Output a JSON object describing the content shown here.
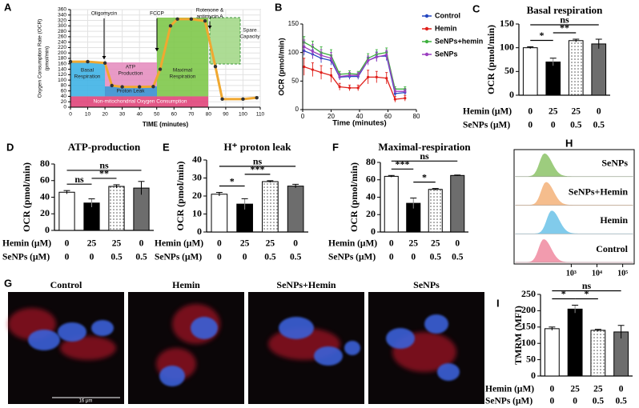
{
  "chart_data": [
    {
      "panel": "A",
      "type": "line",
      "ylabel": "Oxygen Consumption Rate (OCR)",
      "yunit": "(pmol/min)",
      "xlabel": "TIME (minutes)",
      "x": [
        0,
        10,
        20,
        24,
        30,
        40,
        48,
        52,
        58,
        62,
        70,
        78,
        84,
        88,
        100,
        108
      ],
      "values": [
        168,
        168,
        163,
        80,
        75,
        75,
        76,
        140,
        300,
        325,
        325,
        318,
        150,
        30,
        30,
        35
      ],
      "color": "#f0a830",
      "grid": true,
      "xlim": [
        0,
        110
      ],
      "xticks": [
        0,
        10,
        20,
        30,
        40,
        50,
        60,
        70,
        80,
        90,
        100,
        110
      ],
      "ylim": [
        0,
        360
      ],
      "yticks": [
        0,
        20,
        40,
        60,
        80,
        100,
        120,
        140,
        160,
        180,
        200,
        220,
        240,
        260,
        280,
        300,
        320,
        340,
        360
      ],
      "injections": [
        [
          "Oligomycin"
        ],
        [
          "FCCP"
        ],
        [
          "Rotenone &",
          "antimycin A"
        ]
      ],
      "region_labels": [
        [
          "Basal",
          "Respiration"
        ],
        [
          "ATP",
          "Production"
        ],
        [
          "Proton Leak"
        ],
        [
          "Maximal",
          "Respiration"
        ],
        [
          "Spare",
          "Capacity"
        ],
        [
          "Non-mitochondrial Oxygen Consumption"
        ]
      ]
    },
    {
      "panel": "B",
      "type": "line",
      "ylabel": "OCR (pmol/min)",
      "xlabel": "Time (minutes)",
      "x": [
        1,
        7,
        13,
        20,
        26,
        33,
        39,
        46,
        52,
        59,
        65,
        72
      ],
      "series": [
        {
          "name": "Control",
          "color": "#2346c0",
          "values": [
            103,
            97,
            90,
            86,
            57,
            58,
            58,
            86,
            93,
            94,
            28,
            30
          ],
          "errors": [
            8,
            8,
            8,
            8,
            5,
            5,
            5,
            6,
            8,
            8,
            4,
            4
          ]
        },
        {
          "name": "Hemin",
          "color": "#e0201b",
          "values": [
            75,
            70,
            65,
            60,
            40,
            38,
            38,
            57,
            57,
            55,
            18,
            20
          ],
          "errors": [
            15,
            12,
            12,
            12,
            6,
            5,
            5,
            12,
            10,
            10,
            5,
            5
          ]
        },
        {
          "name": "SeNPs+hemin",
          "color": "#3db03d",
          "values": [
            118,
            110,
            100,
            95,
            62,
            63,
            62,
            90,
            97,
            100,
            36,
            36
          ],
          "errors": [
            10,
            10,
            10,
            10,
            5,
            5,
            5,
            8,
            8,
            8,
            4,
            4
          ]
        },
        {
          "name": "SeNPs",
          "color": "#9b3fc0",
          "values": [
            110,
            102,
            95,
            90,
            58,
            60,
            60,
            86,
            92,
            96,
            32,
            32
          ],
          "errors": [
            12,
            12,
            10,
            10,
            5,
            5,
            5,
            8,
            8,
            8,
            4,
            4
          ]
        }
      ],
      "xlim": [
        0,
        80
      ],
      "xticks": [
        0,
        20,
        40,
        60,
        80
      ],
      "ylim": [
        0,
        150
      ],
      "yticks": [
        0,
        50,
        100,
        150
      ],
      "legend": "right"
    },
    {
      "panel": "C",
      "type": "bar",
      "title": "Basal respiration",
      "ylabel": "OCR (pmol/min)",
      "values": [
        100,
        70,
        115,
        108
      ],
      "errors": [
        2,
        8,
        3,
        10
      ],
      "bar_styles": [
        "white",
        "black",
        "dotted",
        "gray"
      ],
      "ylim": [
        0,
        150
      ],
      "yticks": [
        0,
        50,
        100,
        150
      ],
      "rows": [
        {
          "label": "Hemin (μM)",
          "values": [
            "0",
            "25",
            "25",
            "0"
          ]
        },
        {
          "label": "SeNPs (μM)",
          "values": [
            "0",
            "0",
            "0.5",
            "0.5"
          ]
        }
      ],
      "annotations": [
        "*",
        "**",
        "ns"
      ]
    },
    {
      "panel": "D",
      "type": "bar",
      "title": "ATP-production",
      "ylabel": "OCR (pmol/min)",
      "values": [
        46,
        33,
        53,
        51
      ],
      "errors": [
        2,
        5,
        2,
        8
      ],
      "bar_styles": [
        "white",
        "black",
        "dotted",
        "gray"
      ],
      "ylim": [
        0,
        80
      ],
      "yticks": [
        0,
        20,
        40,
        60,
        80
      ],
      "rows": [
        {
          "label": "Hemin (μM)",
          "values": [
            "0",
            "25",
            "25",
            "0"
          ]
        },
        {
          "label": "SeNPs (μM)",
          "values": [
            "0",
            "0",
            "0.5",
            "0.5"
          ]
        }
      ],
      "annotations": [
        "ns",
        "**",
        "ns"
      ]
    },
    {
      "panel": "E",
      "type": "bar",
      "title": "H⁺ proton leak",
      "ylabel": "OCR (pmol/min)",
      "values": [
        21,
        15.5,
        28,
        25.5
      ],
      "errors": [
        1,
        3,
        0.5,
        1
      ],
      "bar_styles": [
        "white",
        "black",
        "dotted",
        "gray"
      ],
      "ylim": [
        0,
        40
      ],
      "yticks": [
        0,
        10,
        20,
        30,
        40
      ],
      "rows": [
        {
          "label": "Hemin (μM)",
          "values": [
            "0",
            "25",
            "25",
            "0"
          ]
        },
        {
          "label": "SeNPs (μM)",
          "values": [
            "0",
            "0",
            "0.5",
            "0.5"
          ]
        }
      ],
      "annotations": [
        "*",
        "***",
        "ns"
      ]
    },
    {
      "panel": "F",
      "type": "bar",
      "title": "Maximal-respiration",
      "ylabel": "OCR (pmol/min)",
      "values": [
        64,
        33,
        49,
        65
      ],
      "errors": [
        1,
        6,
        1,
        0.5
      ],
      "bar_styles": [
        "white",
        "black",
        "dotted",
        "gray"
      ],
      "ylim": [
        0,
        80
      ],
      "yticks": [
        0,
        20,
        40,
        60,
        80
      ],
      "rows": [
        {
          "label": "Hemin (μM)",
          "values": [
            "0",
            "25",
            "25",
            "0"
          ]
        },
        {
          "label": "SeNPs (μM)",
          "values": [
            "0",
            "0",
            "0.5",
            "0.5"
          ]
        }
      ],
      "annotations": [
        "***",
        "*",
        "ns"
      ]
    },
    {
      "panel": "G",
      "type": "image",
      "labels": [
        "Control",
        "Hemin",
        "SeNPs+Hemin",
        "SeNPs"
      ],
      "scale_bar": "16 μm"
    },
    {
      "panel": "H",
      "type": "density",
      "series": [
        {
          "name": "SeNPs",
          "color": "#8dc468"
        },
        {
          "name": "SeNPs+Hemin",
          "color": "#f4b27a"
        },
        {
          "name": "Hemin",
          "color": "#6cc3e8"
        },
        {
          "name": "Control",
          "color": "#f08aa0"
        }
      ],
      "log_x": true,
      "xlim": [
        6,
        280000
      ],
      "xticks": [
        {
          "value": 1000,
          "label": "10³"
        },
        {
          "value": 10000,
          "label": "10⁴"
        },
        {
          "value": 100000,
          "label": "10⁵"
        }
      ]
    },
    {
      "panel": "I",
      "type": "bar",
      "ylabel": "TMRM (MFI)",
      "values": [
        145,
        205,
        140,
        135
      ],
      "errors": [
        5,
        12,
        3,
        20
      ],
      "bar_styles": [
        "white",
        "black",
        "dotted",
        "gray"
      ],
      "ylim": [
        0,
        250
      ],
      "yticks": [
        0,
        50,
        100,
        150,
        200,
        250
      ],
      "rows": [
        {
          "label": "Hemin (μM)",
          "values": [
            "0",
            "25",
            "25",
            "0"
          ]
        },
        {
          "label": "SeNPs (μM)",
          "values": [
            "0",
            "0",
            "0.5",
            "0.5"
          ]
        }
      ],
      "annotations": [
        "*",
        "*",
        "ns"
      ]
    }
  ]
}
